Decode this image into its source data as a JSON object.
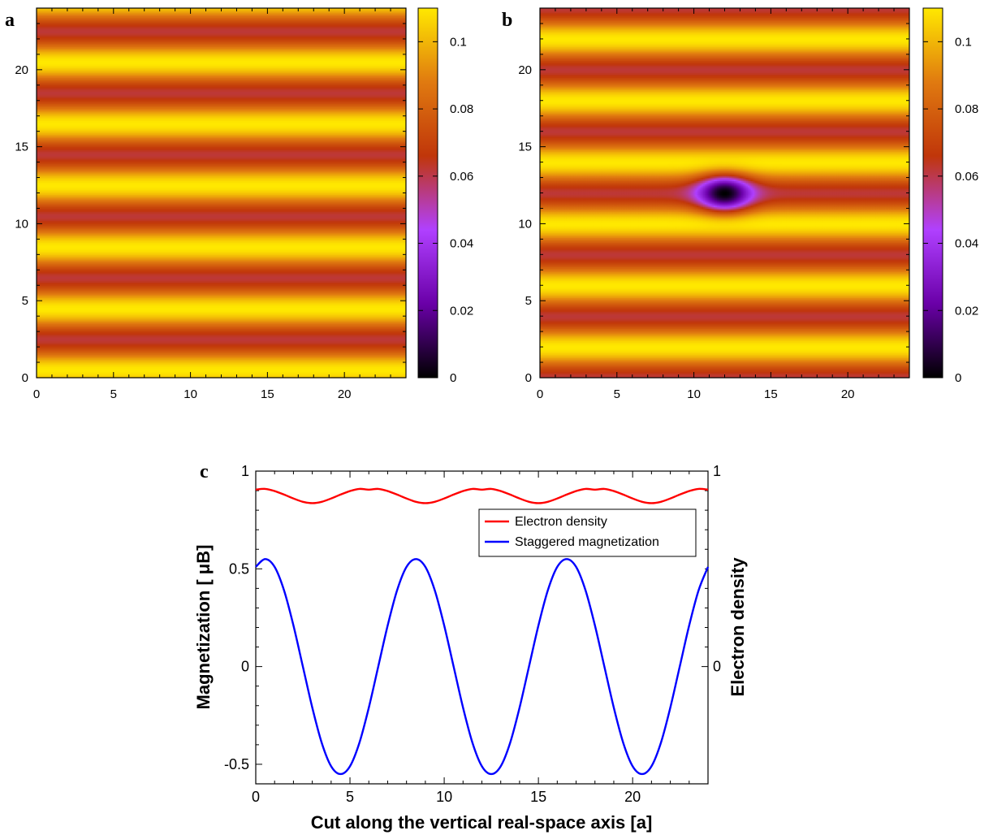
{
  "chart_data": [
    {
      "panel": "a",
      "type": "heatmap",
      "xlim": [
        0,
        24
      ],
      "ylim": [
        0,
        24
      ],
      "xticks": [
        0,
        5,
        10,
        15,
        20
      ],
      "yticks": [
        0,
        5,
        10,
        15,
        20
      ],
      "stripe_axis": "y",
      "stripe_period": 4,
      "stripe_max_at": [
        0.5,
        4.5,
        8.5,
        12.5,
        16.5,
        20.5
      ],
      "value_range": [
        0.062,
        0.11
      ],
      "defect": null,
      "colorbar": {
        "range": [
          0,
          0.11
        ],
        "ticks": [
          0,
          0.02,
          0.04,
          0.06,
          0.08,
          0.1
        ],
        "tick_labels": [
          "0",
          "0.02",
          "0.04",
          "0.06",
          "0.08",
          "0.1"
        ],
        "colors": [
          "#000000",
          "#6a00a8",
          "#b040ff",
          "#c0360a",
          "#e07a10",
          "#ffe800"
        ]
      }
    },
    {
      "panel": "b",
      "type": "heatmap",
      "xlim": [
        0,
        24
      ],
      "ylim": [
        0,
        24
      ],
      "xticks": [
        0,
        5,
        10,
        15,
        20
      ],
      "yticks": [
        0,
        5,
        10,
        15,
        20
      ],
      "stripe_axis": "y",
      "stripe_period": 4,
      "stripe_max_at": [
        2,
        6,
        10,
        14,
        18,
        22
      ],
      "value_range": [
        0.062,
        0.11
      ],
      "defect": {
        "x": 12,
        "y": 12,
        "min_value": 0.0
      },
      "colorbar": {
        "range": [
          0,
          0.11
        ],
        "ticks": [
          0,
          0.02,
          0.04,
          0.06,
          0.08,
          0.1
        ],
        "tick_labels": [
          "0",
          "0.02",
          "0.04",
          "0.06",
          "0.08",
          "0.1"
        ],
        "colors": [
          "#000000",
          "#6a00a8",
          "#b040ff",
          "#c0360a",
          "#e07a10",
          "#ffe800"
        ]
      }
    },
    {
      "panel": "c",
      "type": "line",
      "xlabel": "Cut along the vertical real-space axis [a]",
      "ylabel_left": "Magnetization [ μB]",
      "ylabel_right": "Electron density",
      "xlim": [
        0,
        24
      ],
      "ylim_left": [
        -0.6,
        1
      ],
      "ylim_right": [
        0,
        1
      ],
      "xticks": [
        0,
        5,
        10,
        15,
        20
      ],
      "yticks_left": [
        -0.5,
        0,
        0.5,
        1
      ],
      "ytick_labels_left": [
        "-0.5",
        "0",
        "0.5",
        "1"
      ],
      "yticks_right": [
        0,
        1
      ],
      "ytick_labels_right": [
        "0",
        "1"
      ],
      "legend_position": "upper-right",
      "series": [
        {
          "name": "Electron density",
          "color": "#ff0000",
          "x": [
            0,
            0.5,
            1,
            1.5,
            2,
            2.5,
            3,
            3.5,
            4,
            4.5,
            5,
            5.5,
            6,
            6.5,
            7,
            7.5,
            8,
            8.5,
            9,
            9.5,
            10,
            10.5,
            11,
            11.5,
            12,
            12.5,
            13,
            13.5,
            14,
            14.5,
            15,
            15.5,
            16,
            16.5,
            17,
            17.5,
            18,
            18.5,
            19,
            19.5,
            20,
            20.5,
            21,
            21.5,
            22,
            22.5,
            23,
            23.5,
            24
          ],
          "y": [
            0.905,
            0.909,
            0.898,
            0.88,
            0.86,
            0.843,
            0.836,
            0.843,
            0.86,
            0.88,
            0.898,
            0.909,
            0.905,
            0.909,
            0.898,
            0.88,
            0.86,
            0.843,
            0.836,
            0.843,
            0.86,
            0.88,
            0.898,
            0.909,
            0.905,
            0.909,
            0.898,
            0.88,
            0.86,
            0.843,
            0.836,
            0.843,
            0.86,
            0.88,
            0.898,
            0.909,
            0.905,
            0.909,
            0.898,
            0.88,
            0.86,
            0.843,
            0.836,
            0.843,
            0.86,
            0.88,
            0.898,
            0.909,
            0.905
          ]
        },
        {
          "name": "Staggered magnetization",
          "color": "#0000ff",
          "x": [
            0,
            0.5,
            1,
            1.5,
            2,
            2.5,
            3,
            3.5,
            4,
            4.5,
            5,
            5.5,
            6,
            6.5,
            7,
            7.5,
            8,
            8.5,
            9,
            9.5,
            10,
            10.5,
            11,
            11.5,
            12,
            12.5,
            13,
            13.5,
            14,
            14.5,
            15,
            15.5,
            16,
            16.5,
            17,
            17.5,
            18,
            18.5,
            19,
            19.5,
            20,
            20.5,
            21,
            21.5,
            22,
            22.5,
            23,
            23.5,
            24
          ],
          "y": [
            0.51,
            0.55,
            0.51,
            0.39,
            0.21,
            0.0,
            -0.21,
            -0.39,
            -0.51,
            -0.55,
            -0.51,
            -0.39,
            -0.21,
            0.0,
            0.21,
            0.39,
            0.51,
            0.55,
            0.51,
            0.39,
            0.21,
            0.0,
            -0.21,
            -0.39,
            -0.51,
            -0.55,
            -0.51,
            -0.39,
            -0.21,
            0.0,
            0.21,
            0.39,
            0.51,
            0.55,
            0.51,
            0.39,
            0.21,
            0.0,
            -0.21,
            -0.39,
            -0.51,
            -0.55,
            -0.51,
            -0.39,
            -0.21,
            0.0,
            0.21,
            0.39,
            0.51
          ]
        }
      ]
    }
  ]
}
